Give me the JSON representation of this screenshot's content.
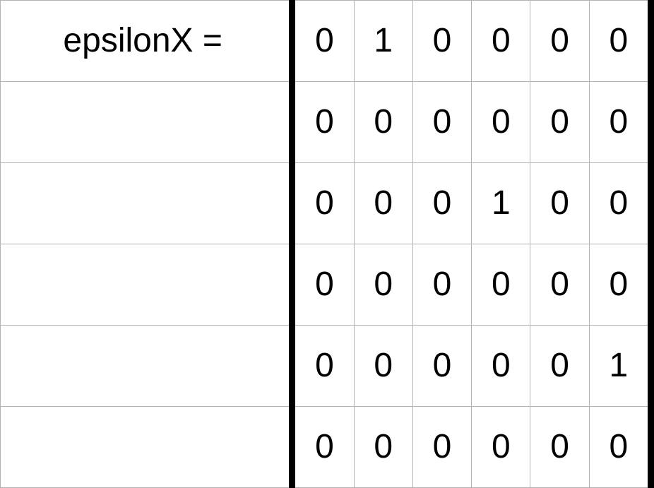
{
  "matrix": {
    "label": "epsilonX =",
    "rows": [
      [
        "0",
        "1",
        "0",
        "0",
        "0",
        "0"
      ],
      [
        "0",
        "0",
        "0",
        "0",
        "0",
        "0"
      ],
      [
        "0",
        "0",
        "0",
        "1",
        "0",
        "0"
      ],
      [
        "0",
        "0",
        "0",
        "0",
        "0",
        "0"
      ],
      [
        "0",
        "0",
        "0",
        "0",
        "0",
        "1"
      ],
      [
        "0",
        "0",
        "0",
        "0",
        "0",
        "0"
      ]
    ]
  },
  "colors": {
    "grid": "#b3b3b3",
    "bracket": "#000000",
    "text": "#000000",
    "background": "#ffffff"
  }
}
